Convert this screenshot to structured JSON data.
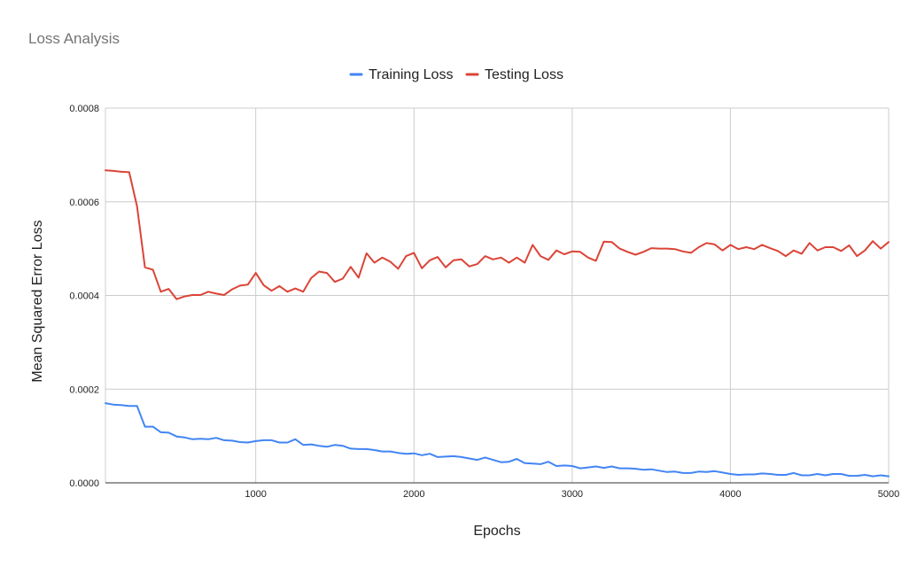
{
  "chart_data": {
    "type": "line",
    "title": "Loss Analysis",
    "xlabel": "Epochs",
    "ylabel": "Mean Squared Error Loss",
    "xlim": [
      50,
      5000
    ],
    "ylim": [
      0,
      0.0008
    ],
    "x_ticks": [
      1000,
      2000,
      3000,
      4000,
      5000
    ],
    "x_tick_labels": [
      "1000",
      "2000",
      "3000",
      "4000",
      "5000"
    ],
    "y_ticks": [
      0,
      0.0002,
      0.0004,
      0.0006,
      0.0008
    ],
    "y_tick_labels": [
      "0.0000",
      "0.0002",
      "0.0004",
      "0.0006",
      "0.0008"
    ],
    "grid": true,
    "legend_position": "top-center",
    "x": [
      50,
      100,
      150,
      200,
      250,
      300,
      350,
      400,
      450,
      500,
      550,
      600,
      650,
      700,
      750,
      800,
      850,
      900,
      950,
      1000,
      1050,
      1100,
      1150,
      1200,
      1250,
      1300,
      1350,
      1400,
      1450,
      1500,
      1550,
      1600,
      1650,
      1700,
      1750,
      1800,
      1850,
      1900,
      1950,
      2000,
      2050,
      2100,
      2150,
      2200,
      2250,
      2300,
      2350,
      2400,
      2450,
      2500,
      2550,
      2600,
      2650,
      2700,
      2750,
      2800,
      2850,
      2900,
      2950,
      3000,
      3050,
      3100,
      3150,
      3200,
      3250,
      3300,
      3350,
      3400,
      3450,
      3500,
      3550,
      3600,
      3650,
      3700,
      3750,
      3800,
      3850,
      3900,
      3950,
      4000,
      4050,
      4100,
      4150,
      4200,
      4250,
      4300,
      4350,
      4400,
      4450,
      4500,
      4550,
      4600,
      4650,
      4700,
      4750,
      4800,
      4850,
      4900,
      4950,
      5000
    ],
    "series": [
      {
        "name": "Training Loss",
        "color": "#4285f4",
        "values": [
          0.00017,
          0.000167,
          0.000166,
          0.000164,
          0.000164,
          0.00012,
          0.00012,
          0.000108,
          0.000107,
          9.9e-05,
          9.7e-05,
          9.3e-05,
          9.4e-05,
          9.3e-05,
          9.6e-05,
          9.1e-05,
          9e-05,
          8.7e-05,
          8.6e-05,
          8.9e-05,
          9.1e-05,
          9.1e-05,
          8.6e-05,
          8.6e-05,
          9.3e-05,
          8.1e-05,
          8.2e-05,
          7.9e-05,
          7.7e-05,
          8.1e-05,
          7.9e-05,
          7.3e-05,
          7.2e-05,
          7.2e-05,
          7e-05,
          6.7e-05,
          6.7e-05,
          6.4e-05,
          6.2e-05,
          6.3e-05,
          5.9e-05,
          6.2e-05,
          5.5e-05,
          5.6e-05,
          5.7e-05,
          5.5e-05,
          5.2e-05,
          4.9e-05,
          5.4e-05,
          4.9e-05,
          4.4e-05,
          4.5e-05,
          5.1e-05,
          4.2e-05,
          4.1e-05,
          4e-05,
          4.5e-05,
          3.6e-05,
          3.7e-05,
          3.6e-05,
          3.1e-05,
          3.3e-05,
          3.5e-05,
          3.2e-05,
          3.5e-05,
          3.1e-05,
          3.1e-05,
          3e-05,
          2.8e-05,
          2.9e-05,
          2.6e-05,
          2.3e-05,
          2.4e-05,
          2.1e-05,
          2.1e-05,
          2.4e-05,
          2.3e-05,
          2.5e-05,
          2.2e-05,
          1.9e-05,
          1.7e-05,
          1.8e-05,
          1.8e-05,
          2e-05,
          1.9e-05,
          1.7e-05,
          1.7e-05,
          2.1e-05,
          1.6e-05,
          1.6e-05,
          1.9e-05,
          1.6e-05,
          1.9e-05,
          1.9e-05,
          1.5e-05,
          1.5e-05,
          1.7e-05,
          1.4e-05,
          1.6e-05,
          1.4e-05
        ]
      },
      {
        "name": "Testing Loss",
        "color": "#db4437",
        "values": [
          0.000667,
          0.000666,
          0.000664,
          0.000663,
          0.00059,
          0.00046,
          0.000455,
          0.000408,
          0.000414,
          0.000392,
          0.000398,
          0.000401,
          0.000401,
          0.000408,
          0.000404,
          0.000401,
          0.000413,
          0.000421,
          0.000423,
          0.000448,
          0.000422,
          0.00041,
          0.00042,
          0.000408,
          0.000415,
          0.000408,
          0.000437,
          0.000451,
          0.000448,
          0.000429,
          0.000436,
          0.000461,
          0.000438,
          0.00049,
          0.00047,
          0.000481,
          0.000472,
          0.000457,
          0.000484,
          0.000491,
          0.000458,
          0.000475,
          0.000482,
          0.00046,
          0.000475,
          0.000477,
          0.000462,
          0.000467,
          0.000484,
          0.000477,
          0.000481,
          0.00047,
          0.000481,
          0.00047,
          0.000508,
          0.000484,
          0.000476,
          0.000496,
          0.000488,
          0.000494,
          0.000493,
          0.000481,
          0.000474,
          0.000515,
          0.000514,
          0.0005,
          0.000493,
          0.000487,
          0.000493,
          0.000501,
          0.0005,
          0.0005,
          0.000499,
          0.000494,
          0.000491,
          0.000503,
          0.000512,
          0.000509,
          0.000496,
          0.000508,
          0.000499,
          0.000503,
          0.000499,
          0.000508,
          0.000501,
          0.000495,
          0.000484,
          0.000496,
          0.000489,
          0.000512,
          0.000496,
          0.000503,
          0.000503,
          0.000495,
          0.000507,
          0.000484,
          0.000496,
          0.000516,
          0.0005,
          0.000514
        ]
      }
    ]
  }
}
